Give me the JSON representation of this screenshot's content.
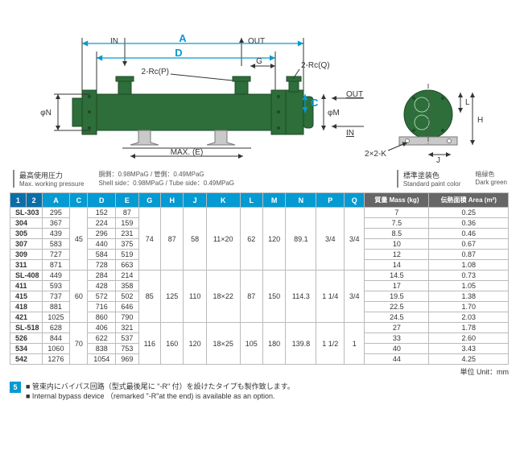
{
  "diagram": {
    "labels": {
      "IN_top": "IN",
      "OUT_top": "OUT",
      "A": "A",
      "D": "D",
      "G": "G",
      "twoRcP": "2-Rc(P)",
      "twoRcQ": "2-Rc(Q)",
      "OUT_side": "OUT",
      "IN_side": "IN",
      "C": "C",
      "phiN": "φN",
      "phiM": "φM",
      "MAXE": "MAX. (E)",
      "L": "L",
      "H": "H",
      "J": "J",
      "twoByTwoK": "2×2-K"
    },
    "body_fill": "#2d6e3a",
    "body_stroke": "#1e4b27",
    "bracket_fill": "#c9c9c9",
    "bracket_stroke": "#777",
    "line": "#333"
  },
  "info": {
    "pressure_jp": "最高使用圧力",
    "pressure_en": "Max. working pressure",
    "pressure_val_jp": "胴側：0.98MPaG / 管側：0.49MPaG",
    "pressure_val_en": "Shell side：0.98MPaG / Tube side：0.49MPaG",
    "paint_jp": "標準塗装色",
    "paint_en": "Standard paint color",
    "paint_val_jp": "暗緑色",
    "paint_val_en": "Dark green"
  },
  "table": {
    "head": {
      "n1": "1",
      "n2": "2",
      "A": "A",
      "C": "C",
      "D": "D",
      "E": "E",
      "G": "G",
      "H": "H",
      "J": "J",
      "K": "K",
      "L": "L",
      "M": "M",
      "N": "N",
      "P": "P",
      "Q": "Q",
      "mass": "質量 Mass\n(kg)",
      "area": "伝熱面積 Area\n(m²)"
    },
    "rows": [
      {
        "m": "SL-303",
        "A": "295",
        "C": "",
        "D": "152",
        "E": "87",
        "G": "",
        "H": "",
        "J": "",
        "K": "",
        "L": "",
        "M": "",
        "N": "",
        "P": "",
        "Q": "",
        "mass": "7",
        "area": "0.25"
      },
      {
        "m": "304",
        "A": "367",
        "C": "",
        "D": "224",
        "E": "159",
        "G": "",
        "H": "",
        "J": "",
        "K": "",
        "L": "",
        "M": "",
        "N": "",
        "P": "",
        "Q": "",
        "mass": "7.5",
        "area": "0.36"
      },
      {
        "m": "305",
        "A": "439",
        "C": "45",
        "D": "296",
        "E": "231",
        "G": "74",
        "H": "87",
        "J": "58",
        "K": "11×20",
        "L": "62",
        "M": "120",
        "N": "89.1",
        "P": "3/4",
        "Q": "3/4",
        "mass": "8.5",
        "area": "0.46"
      },
      {
        "m": "307",
        "A": "583",
        "C": "",
        "D": "440",
        "E": "375",
        "G": "",
        "H": "",
        "J": "",
        "K": "",
        "L": "",
        "M": "",
        "N": "",
        "P": "",
        "Q": "",
        "mass": "10",
        "area": "0.67"
      },
      {
        "m": "309",
        "A": "727",
        "C": "",
        "D": "584",
        "E": "519",
        "G": "",
        "H": "",
        "J": "",
        "K": "",
        "L": "",
        "M": "",
        "N": "",
        "P": "",
        "Q": "",
        "mass": "12",
        "area": "0.87"
      },
      {
        "m": "311",
        "A": "871",
        "C": "",
        "D": "728",
        "E": "663",
        "G": "",
        "H": "",
        "J": "",
        "K": "",
        "L": "",
        "M": "",
        "N": "",
        "P": "",
        "Q": "",
        "mass": "14",
        "area": "1.08"
      },
      {
        "m": "SL-408",
        "A": "449",
        "C": "",
        "D": "284",
        "E": "214",
        "G": "",
        "H": "",
        "J": "",
        "K": "",
        "L": "",
        "M": "",
        "N": "",
        "P": "",
        "Q": "",
        "mass": "14.5",
        "area": "0.73"
      },
      {
        "m": "411",
        "A": "593",
        "C": "",
        "D": "428",
        "E": "358",
        "G": "",
        "H": "",
        "J": "",
        "K": "",
        "L": "",
        "M": "",
        "N": "",
        "P": "",
        "Q": "",
        "mass": "17",
        "area": "1.05"
      },
      {
        "m": "415",
        "A": "737",
        "C": "60",
        "D": "572",
        "E": "502",
        "G": "85",
        "H": "125",
        "J": "110",
        "K": "18×22",
        "L": "87",
        "M": "150",
        "N": "114.3",
        "P": "1 1/4",
        "Q": "3/4",
        "mass": "19.5",
        "area": "1.38"
      },
      {
        "m": "418",
        "A": "881",
        "C": "",
        "D": "716",
        "E": "646",
        "G": "",
        "H": "",
        "J": "",
        "K": "",
        "L": "",
        "M": "",
        "N": "",
        "P": "",
        "Q": "",
        "mass": "22.5",
        "area": "1.70"
      },
      {
        "m": "421",
        "A": "1025",
        "C": "",
        "D": "860",
        "E": "790",
        "G": "",
        "H": "",
        "J": "",
        "K": "",
        "L": "",
        "M": "",
        "N": "",
        "P": "",
        "Q": "",
        "mass": "24.5",
        "area": "2.03"
      },
      {
        "m": "SL-518",
        "A": "628",
        "C": "",
        "D": "406",
        "E": "321",
        "G": "",
        "H": "",
        "J": "",
        "K": "",
        "L": "",
        "M": "",
        "N": "",
        "P": "",
        "Q": "",
        "mass": "27",
        "area": "1.78"
      },
      {
        "m": "526",
        "A": "844",
        "C": "70",
        "D": "622",
        "E": "537",
        "G": "116",
        "H": "160",
        "J": "120",
        "K": "18×25",
        "L": "105",
        "M": "180",
        "N": "139.8",
        "P": "1 1/2",
        "Q": "1",
        "mass": "33",
        "area": "2.60"
      },
      {
        "m": "534",
        "A": "1060",
        "C": "",
        "D": "838",
        "E": "753",
        "G": "",
        "H": "",
        "J": "",
        "K": "",
        "L": "",
        "M": "",
        "N": "",
        "P": "",
        "Q": "",
        "mass": "40",
        "area": "3.43"
      },
      {
        "m": "542",
        "A": "1276",
        "C": "",
        "D": "1054",
        "E": "969",
        "G": "",
        "H": "",
        "J": "",
        "K": "",
        "L": "",
        "M": "",
        "N": "",
        "P": "",
        "Q": "",
        "mass": "44",
        "area": "4.25"
      }
    ],
    "unit": "単位 Unit：mm"
  },
  "footer": {
    "badge": "5",
    "line1": "■ 管束内にバイパス回路（型式最後尾に \"-R\" 付）を設けたタイプも製作致します。",
    "line2": "■ Internal bypass device （remarked \"-R\"at the end) is available as an option."
  }
}
